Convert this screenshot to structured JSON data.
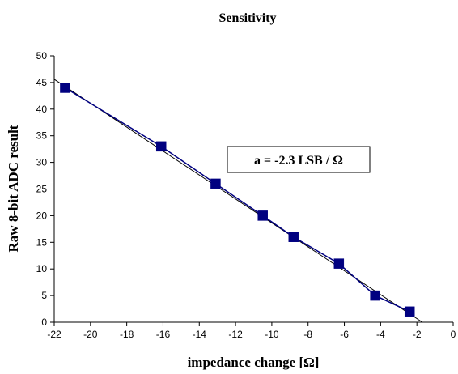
{
  "chart_data": {
    "type": "scatter",
    "title": "Sensitivity",
    "xlabel": "impedance change [Ω]",
    "ylabel": "Raw 8-bit ADC result",
    "xlim": [
      -22,
      0
    ],
    "ylim": [
      0,
      50
    ],
    "x_ticks": [
      "-22",
      "-20",
      "-18",
      "-16",
      "-14",
      "-12",
      "-10",
      "-8",
      "-6",
      "-4",
      "-2",
      "0"
    ],
    "y_ticks": [
      "0",
      "5",
      "10",
      "15",
      "20",
      "25",
      "30",
      "35",
      "40",
      "45",
      "50"
    ],
    "grid": false,
    "series": [
      {
        "x": [
          -21.4,
          -16.1,
          -13.1,
          -10.5,
          -8.8,
          -6.3,
          -4.3,
          -2.4
        ],
        "y": [
          44,
          33,
          26,
          20,
          16,
          11,
          5,
          2
        ],
        "marker": "square",
        "color": "#000080"
      }
    ],
    "trendline": {
      "x": [
        -22,
        -1.7
      ],
      "y": [
        45.6,
        0
      ],
      "color": "#000000"
    },
    "annotation": "a = -2.3 LSB / Ω"
  }
}
